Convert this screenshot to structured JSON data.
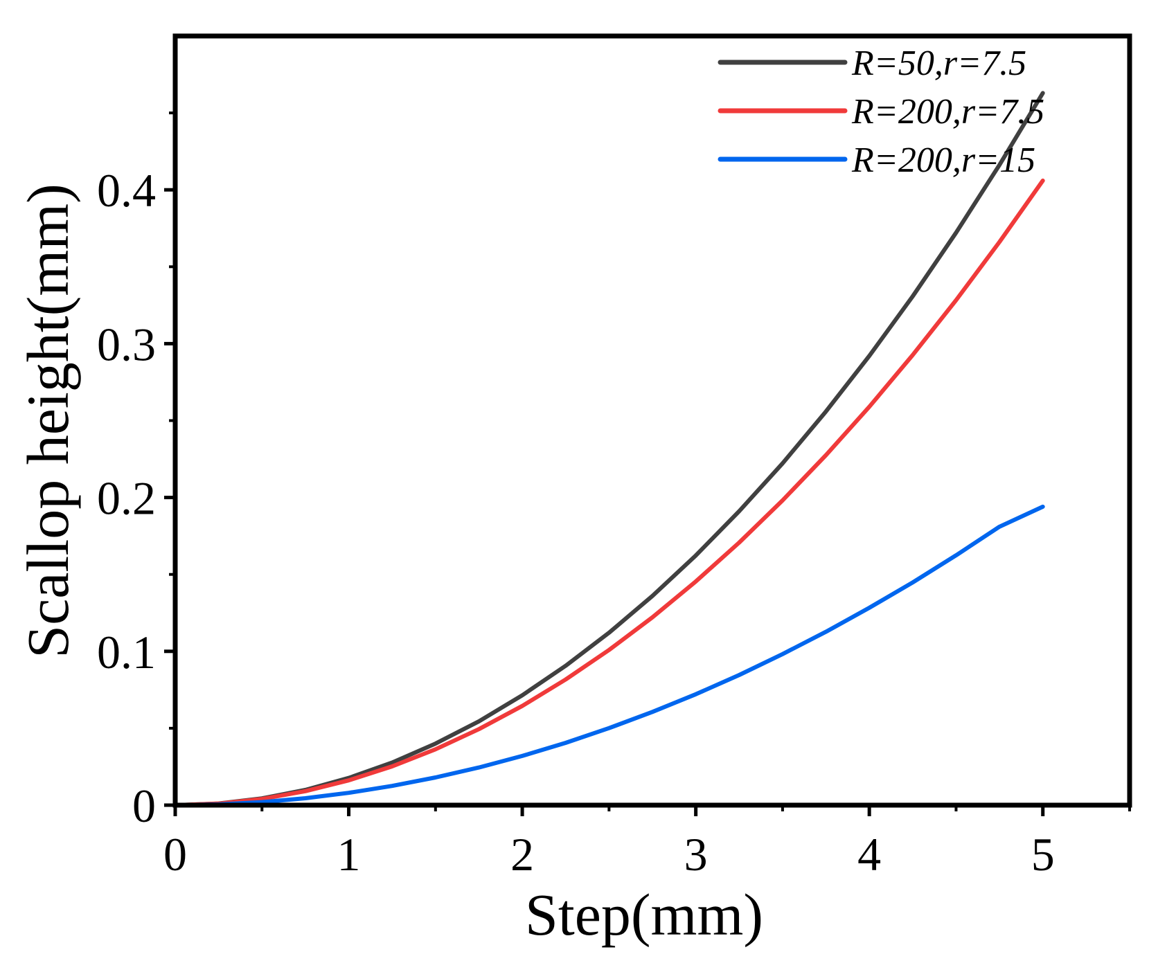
{
  "chart_data": {
    "type": "line",
    "title": "",
    "xlabel": "Step(mm)",
    "ylabel": "Scallop height(mm)",
    "xlim": [
      0,
      5.5
    ],
    "ylim": [
      0,
      0.5
    ],
    "xticks": [
      0,
      1,
      2,
      3,
      4,
      5
    ],
    "xtick_labels": [
      "0",
      "1",
      "2",
      "3",
      "4",
      "5"
    ],
    "yticks": [
      0,
      0.1,
      0.2,
      0.3,
      0.4
    ],
    "ytick_labels": [
      "0",
      "0.1",
      "0.2",
      "0.3",
      "0.4"
    ],
    "grid": false,
    "legend_position": "top-right",
    "x": [
      0,
      0.25,
      0.5,
      0.75,
      1,
      1.25,
      1.5,
      1.75,
      2,
      2.25,
      2.5,
      2.75,
      3,
      3.25,
      3.5,
      3.75,
      4,
      4.25,
      4.5,
      4.75,
      5
    ],
    "series": [
      {
        "name": "R=50,r=7.5",
        "color": "#404040",
        "values": [
          0,
          0.0011,
          0.0044,
          0.0099,
          0.0177,
          0.0277,
          0.04,
          0.0545,
          0.0714,
          0.0906,
          0.1121,
          0.136,
          0.1623,
          0.1911,
          0.2222,
          0.2559,
          0.2921,
          0.3308,
          0.3722,
          0.4162,
          0.4629
        ]
      },
      {
        "name": "R=200,r=7.5",
        "color": "#f03a3a",
        "values": [
          0,
          0.001,
          0.004,
          0.0091,
          0.0161,
          0.0252,
          0.0363,
          0.0494,
          0.0645,
          0.0817,
          0.1009,
          0.1221,
          0.1454,
          0.1707,
          0.1981,
          0.2275,
          0.259,
          0.2926,
          0.3283,
          0.3661,
          0.406
        ]
      },
      {
        "name": "R=200,r=15",
        "color": "#0066ee",
        "values": [
          0,
          0.0005,
          0.002,
          0.0045,
          0.008,
          0.0125,
          0.018,
          0.0245,
          0.032,
          0.0405,
          0.0501,
          0.0606,
          0.0721,
          0.0846,
          0.0982,
          0.1127,
          0.1283,
          0.1448,
          0.1624,
          0.181,
          0.194
        ]
      }
    ]
  }
}
